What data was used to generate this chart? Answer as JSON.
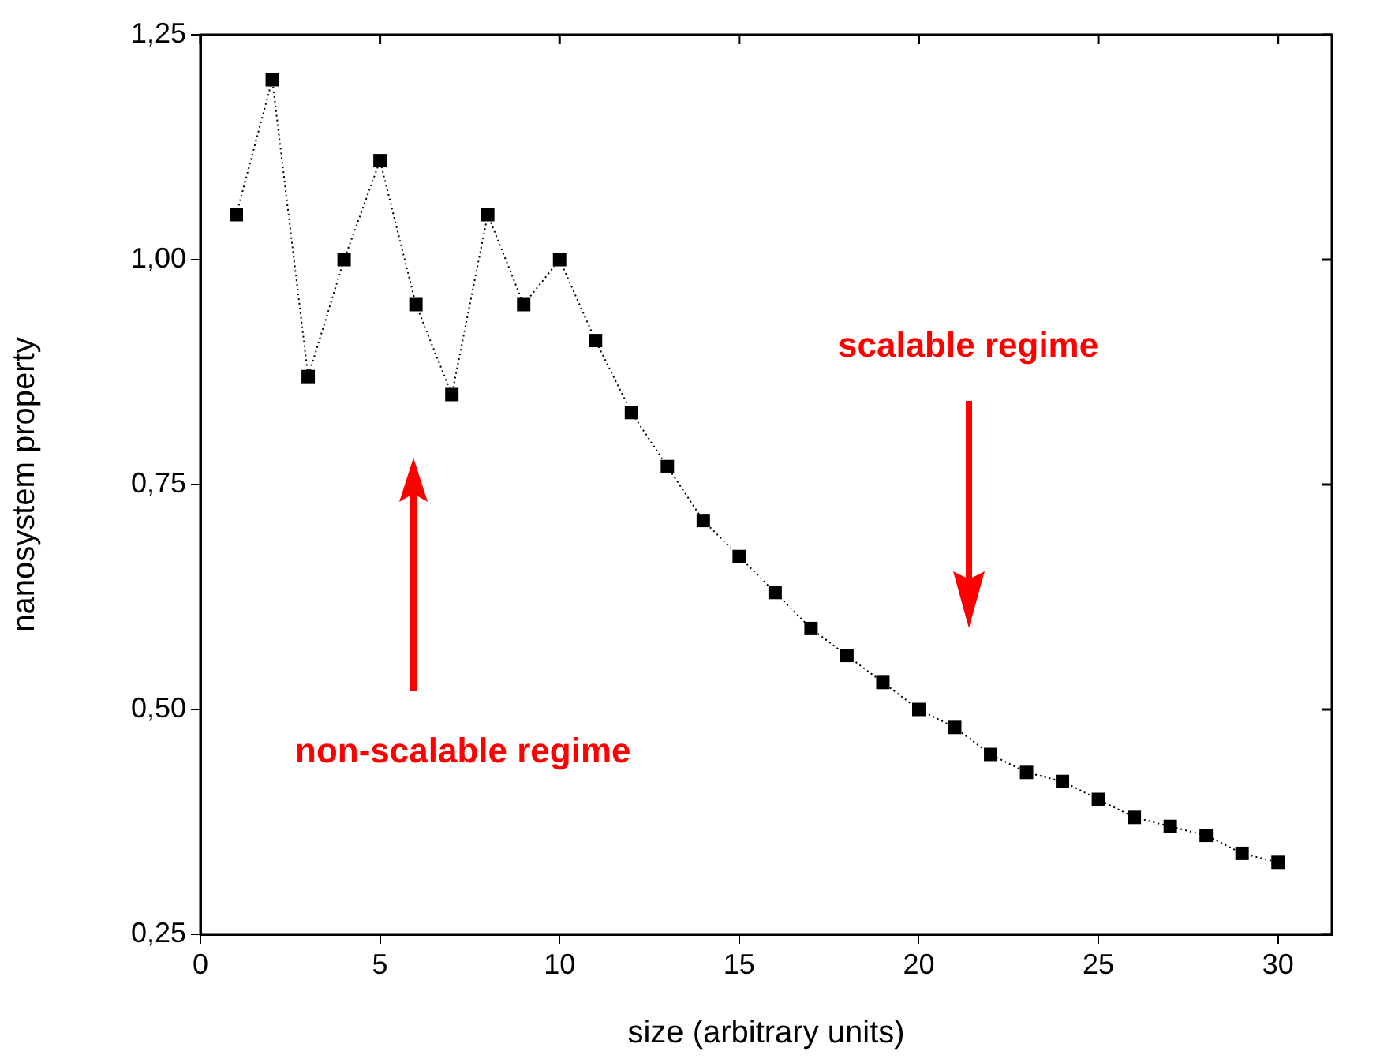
{
  "chart_data": {
    "type": "line",
    "xlabel": "size (arbitrary units)",
    "ylabel": "nanosystem property",
    "x": [
      1,
      2,
      3,
      4,
      5,
      6,
      7,
      8,
      9,
      10,
      11,
      12,
      13,
      14,
      15,
      16,
      17,
      18,
      19,
      20,
      21,
      22,
      23,
      24,
      25,
      26,
      27,
      28,
      29,
      30
    ],
    "series": [
      {
        "color": "#000000",
        "values": [
          1.05,
          1.2,
          0.87,
          1.0,
          1.11,
          0.95,
          0.85,
          1.05,
          0.95,
          1.0,
          0.91,
          0.83,
          0.77,
          0.71,
          0.67,
          0.63,
          0.59,
          0.56,
          0.53,
          0.5,
          0.48,
          0.45,
          0.43,
          0.42,
          0.4,
          0.38,
          0.37,
          0.36,
          0.34,
          0.33
        ]
      }
    ],
    "xlim": [
      0,
      31.5
    ],
    "xticks": [
      0,
      5,
      10,
      15,
      20,
      25,
      30
    ],
    "ylim": [
      0.25,
      1.25
    ],
    "yticks": [
      {
        "value": 0.25,
        "label": "0,25"
      },
      {
        "value": 0.5,
        "label": "0,50"
      },
      {
        "value": 0.75,
        "label": "0,75"
      },
      {
        "value": 1.0,
        "label": "1,00"
      },
      {
        "value": 1.25,
        "label": "1,25"
      }
    ],
    "annotations": [
      "scalable regime",
      "non-scalable regime"
    ],
    "marker": "square",
    "line_style": "dotted",
    "grid": false,
    "legend": false
  }
}
